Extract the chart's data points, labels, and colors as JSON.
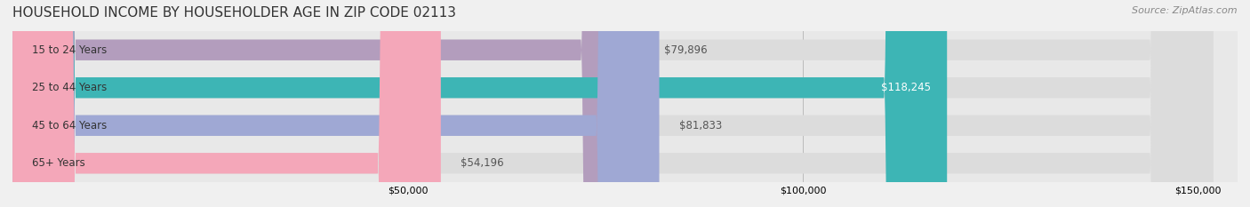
{
  "title": "HOUSEHOLD INCOME BY HOUSEHOLDER AGE IN ZIP CODE 02113",
  "source": "Source: ZipAtlas.com",
  "categories": [
    "15 to 24 Years",
    "25 to 44 Years",
    "45 to 64 Years",
    "65+ Years"
  ],
  "values": [
    79896,
    118245,
    81833,
    54196
  ],
  "bar_colors": [
    "#b39dbd",
    "#3db5b5",
    "#9fa8d4",
    "#f4a7b9"
  ],
  "label_colors": [
    "#555555",
    "#ffffff",
    "#555555",
    "#555555"
  ],
  "value_labels": [
    "$79,896",
    "$118,245",
    "$81,833",
    "$54,196"
  ],
  "background_color": "#f0f0f0",
  "bar_background_color": "#e8e8e8",
  "xlim": [
    0,
    155000
  ],
  "xticks": [
    50000,
    100000,
    150000
  ],
  "xtick_labels": [
    "$50,000",
    "$100,000",
    "$150,000"
  ],
  "title_fontsize": 11,
  "source_fontsize": 8,
  "bar_height": 0.55,
  "label_fontsize": 8.5,
  "category_fontsize": 8.5
}
